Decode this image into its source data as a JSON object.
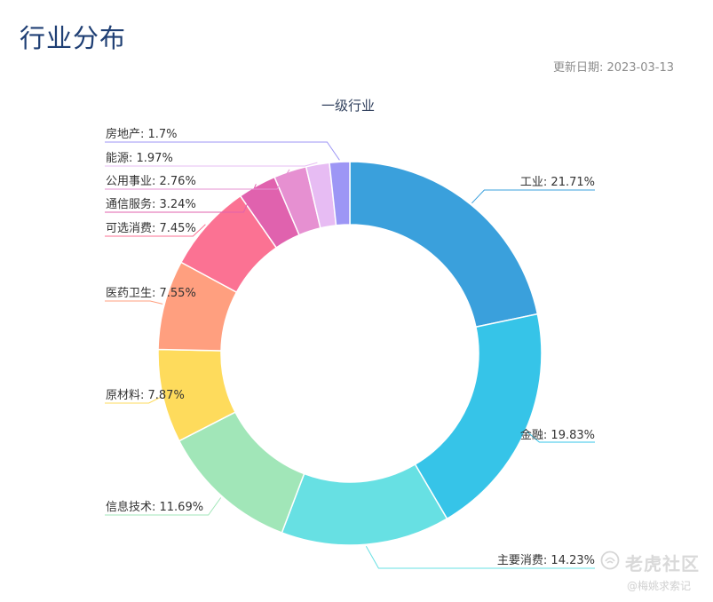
{
  "page": {
    "title": "行业分布",
    "update_date": "更新日期: 2023-03-13"
  },
  "watermark": {
    "brand": "老虎社区",
    "user": "@梅姚求索记"
  },
  "chart_data": {
    "type": "pie",
    "variant": "donut",
    "title": "一级行业",
    "start": "top, clockwise",
    "slices": [
      {
        "label": "工业",
        "value": 21.71,
        "display": "工业: 21.71%",
        "color": "#3aa0dc"
      },
      {
        "label": "金融",
        "value": 19.83,
        "display": "金融: 19.83%",
        "color": "#36c4e8"
      },
      {
        "label": "主要消费",
        "value": 14.23,
        "display": "主要消费: 14.23%",
        "color": "#67e0e3"
      },
      {
        "label": "信息技术",
        "value": 11.69,
        "display": "信息技术: 11.69%",
        "color": "#a1e6b8"
      },
      {
        "label": "原材料",
        "value": 7.87,
        "display": "原材料: 7.87%",
        "color": "#fedb5c"
      },
      {
        "label": "医药卫生",
        "value": 7.55,
        "display": "医药卫生: 7.55%",
        "color": "#ff9f7f"
      },
      {
        "label": "可选消费",
        "value": 7.45,
        "display": "可选消费: 7.45%",
        "color": "#fb7293"
      },
      {
        "label": "通信服务",
        "value": 3.24,
        "display": "通信服务: 3.24%",
        "color": "#e062ae"
      },
      {
        "label": "公用事业",
        "value": 2.76,
        "display": "公用事业: 2.76%",
        "color": "#e690d1"
      },
      {
        "label": "能源",
        "value": 1.97,
        "display": "能源: 1.97%",
        "color": "#e7bcf3"
      },
      {
        "label": "房地产",
        "value": 1.7,
        "display": "房地产: 1.7%",
        "color": "#9d96f5"
      }
    ]
  }
}
